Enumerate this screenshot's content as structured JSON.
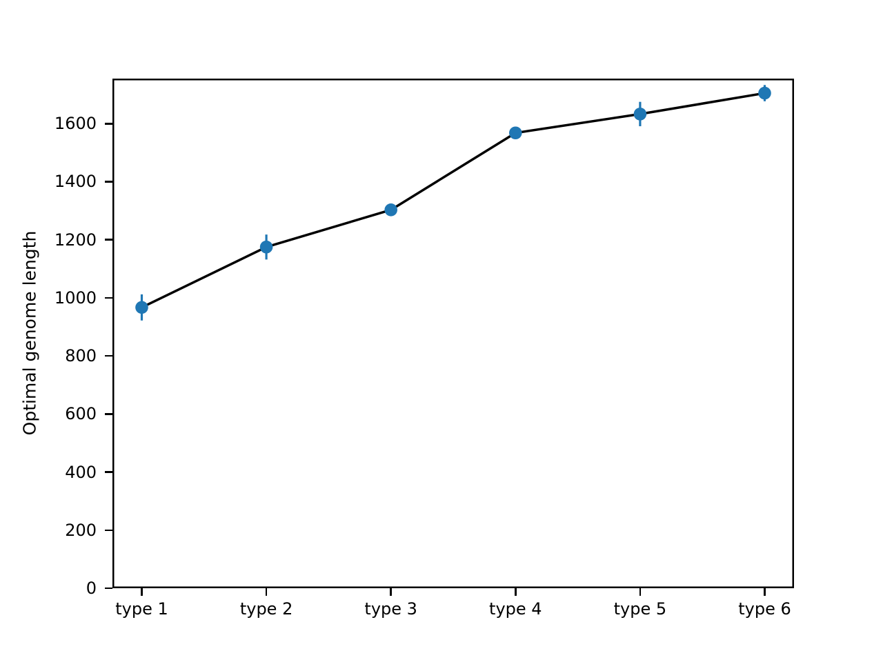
{
  "figure": {
    "background": "#ffffff"
  },
  "chart_data": {
    "type": "line",
    "title": "",
    "xlabel": "",
    "ylabel": "Optimal genome length",
    "categories": [
      "type 1",
      "type 2",
      "type 3",
      "type 4",
      "type 5",
      "type 6"
    ],
    "series": [
      {
        "name": "optimal-genome-length",
        "values": [
          967,
          1175,
          1303,
          1568,
          1633,
          1705
        ],
        "error_bars": [
          45,
          43,
          15,
          20,
          42,
          28
        ]
      }
    ],
    "ylim": [
      0,
      1755
    ],
    "yticks": [
      0,
      200,
      400,
      600,
      800,
      1000,
      1200,
      1400,
      1600
    ],
    "grid": false,
    "legend": false,
    "line_color": "#000000",
    "marker_color": "#1f77b4",
    "axis_color": "#000000"
  }
}
